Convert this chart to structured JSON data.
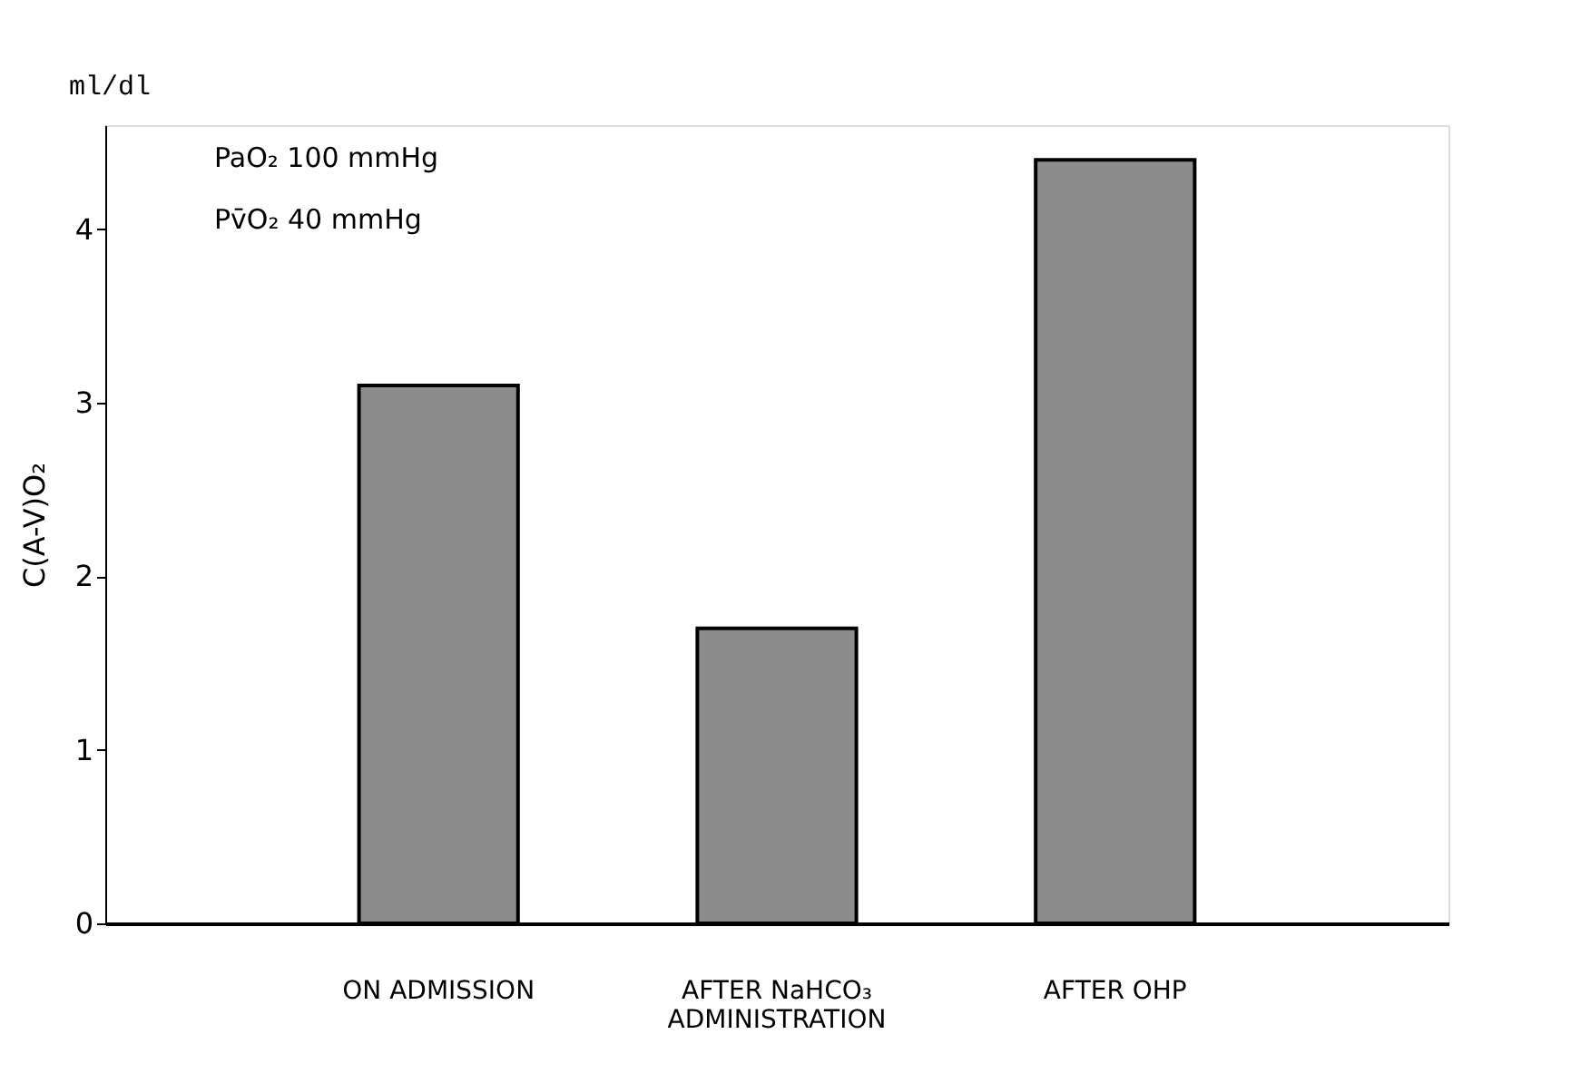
{
  "chart_data": {
    "type": "bar",
    "ylabel": "C(A-V)O₂",
    "categories": [
      "ON ADMISSION",
      "AFTER NaHCO₃ ADMINISTRATION",
      "AFTER OHP"
    ],
    "values": [
      3.1,
      1.7,
      4.4
    ],
    "color": "#8c8c8c",
    "ylim": [
      0,
      4.6
    ],
    "yticks": [
      0,
      1,
      2,
      3,
      4
    ],
    "grid": false,
    "annotations": [
      "ml/dl",
      "PaO₂   100 mmHg",
      "Pv̄O₂    40 mmHg"
    ]
  }
}
